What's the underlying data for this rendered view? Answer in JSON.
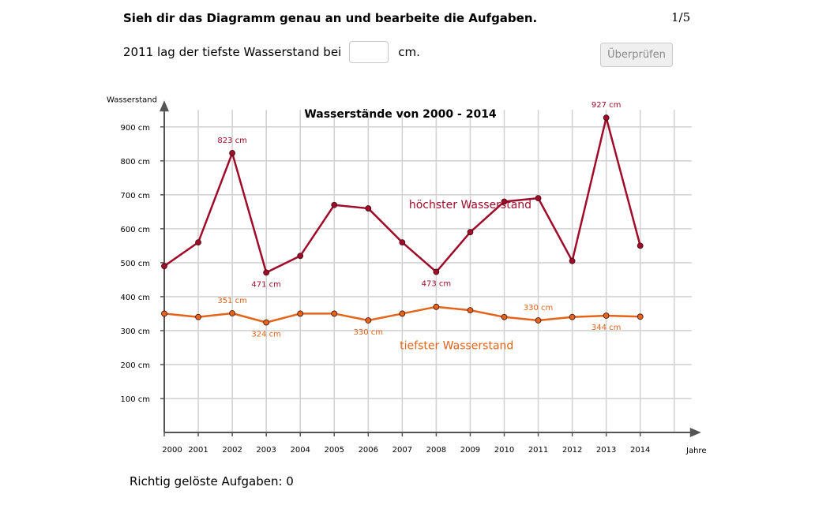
{
  "instruction": "Sieh dir das Diagramm genau an und bearbeite die Aufgaben.",
  "page_counter": "1/5",
  "question": {
    "prefix": "2011 lag der tiefste Wasserstand bei",
    "suffix": "cm.",
    "input_value": ""
  },
  "check_button": "Überprüfen",
  "score": {
    "label": "Richtig gelöste Aufgaben: 0"
  },
  "colors": {
    "highest": "#a00b2a",
    "lowest": "#e3641a",
    "grid": "#d3d3d3",
    "axis": "#555555"
  },
  "chart_data": {
    "type": "line",
    "title": "Wasserstände von 2000 - 2014",
    "ylabel": "Wasserstand",
    "xlabel": "Jahre",
    "ylim": [
      0,
      950
    ],
    "grid": true,
    "x": [
      2000,
      2001,
      2002,
      2003,
      2004,
      2005,
      2006,
      2007,
      2008,
      2009,
      2010,
      2011,
      2012,
      2013,
      2014
    ],
    "x_tick_labels": [
      "2000",
      "2001",
      "2002",
      "2003",
      "2004",
      "2005",
      "2006",
      "2007",
      "2008",
      "2009",
      "2010",
      "2011",
      "2012",
      "2013",
      "2014"
    ],
    "y_ticks": [
      100,
      200,
      300,
      400,
      500,
      600,
      700,
      800,
      900
    ],
    "y_tick_labels": [
      "100 cm",
      "200 cm",
      "300 cm",
      "400 cm",
      "500 cm",
      "600 cm",
      "700 cm",
      "800 cm",
      "900 cm"
    ],
    "series": [
      {
        "name": "höchster Wasserstand",
        "color": "#a00b2a",
        "values": [
          490,
          560,
          823,
          471,
          520,
          670,
          660,
          560,
          473,
          590,
          680,
          690,
          505,
          927,
          550
        ],
        "data_labels": [
          {
            "index": 2,
            "text": "823 cm",
            "pos": "above"
          },
          {
            "index": 3,
            "text": "471 cm",
            "pos": "below"
          },
          {
            "index": 8,
            "text": "473 cm",
            "pos": "below"
          },
          {
            "index": 13,
            "text": "927 cm",
            "pos": "above"
          }
        ]
      },
      {
        "name": "tiefster Wasserstand",
        "color": "#e3641a",
        "values": [
          350,
          340,
          351,
          324,
          350,
          350,
          330,
          350,
          370,
          360,
          340,
          330,
          340,
          344,
          341
        ],
        "data_labels": [
          {
            "index": 2,
            "text": "351 cm",
            "pos": "above"
          },
          {
            "index": 3,
            "text": "324 cm",
            "pos": "below"
          },
          {
            "index": 6,
            "text": "330 cm",
            "pos": "below"
          },
          {
            "index": 11,
            "text": "330 cm",
            "pos": "above"
          },
          {
            "index": 13,
            "text": "344 cm",
            "pos": "below"
          }
        ]
      }
    ]
  }
}
